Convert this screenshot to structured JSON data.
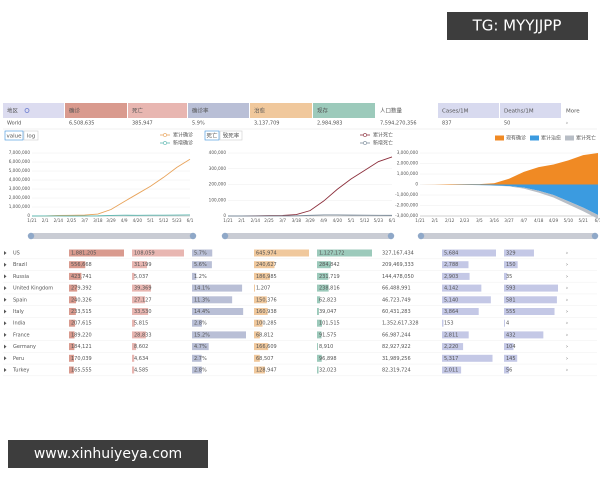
{
  "watermarks": {
    "top": "TG: MYYJJPP",
    "bottom": "www.xinhuiyeya.com"
  },
  "header": {
    "cells": [
      "地区",
      "确诊",
      "死亡",
      "确诊率",
      "治愈",
      "现存",
      "人口数量",
      "Cases/1M",
      "Deaths/1M",
      "More"
    ]
  },
  "world": [
    "World",
    "6,508,635",
    "385,947",
    "5.9%",
    "3,137,709",
    "2,984,983",
    "7,594,270,356",
    "837",
    "50",
    "›"
  ],
  "toolbar": {
    "scale": [
      "value",
      "log"
    ],
    "mode": [
      "死亡",
      "致死率"
    ]
  },
  "charts": [
    {
      "type": "line",
      "legend": "top-right",
      "x": [
        "1/21",
        "2/1",
        "2/14",
        "2/25",
        "3/7",
        "3/18",
        "3/29",
        "4/9",
        "4/20",
        "5/1",
        "5/12",
        "5/23",
        "6/1"
      ],
      "ylim": [
        0,
        7000000
      ],
      "yticks": [
        0,
        {
          "value": 1000000,
          "label": "1,000,000"
        },
        {
          "value": 2000000,
          "label": "2,000,000"
        },
        {
          "value": 3000000,
          "label": "3,000,000"
        },
        {
          "value": 4000000,
          "label": "4,000,000"
        },
        {
          "value": 5000000,
          "label": "5,000,000"
        },
        {
          "value": 6000000,
          "label": "6,000,000"
        },
        {
          "value": 7000000,
          "label": "7,000,000"
        }
      ],
      "series": [
        {
          "name": "累计确诊",
          "color": "#e8a35a",
          "values": [
            0,
            12000,
            60000,
            80000,
            105000,
            215000,
            720000,
            1600000,
            2450000,
            3300000,
            4300000,
            5400000,
            6300000
          ]
        },
        {
          "name": "新增确诊",
          "color": "#5bb7b0",
          "values": [
            0,
            2000,
            4000,
            1000,
            3500,
            15000,
            60000,
            85000,
            80000,
            85000,
            90000,
            100000,
            120000
          ]
        }
      ]
    },
    {
      "type": "line",
      "legend": "top-right",
      "x": [
        "1/21",
        "2/1",
        "2/14",
        "2/25",
        "3/7",
        "3/18",
        "3/29",
        "4/9",
        "4/20",
        "5/1",
        "5/12",
        "5/23",
        "6/1"
      ],
      "ylim": [
        0,
        400000
      ],
      "yticks": [
        0,
        {
          "value": 100000,
          "label": "100,000"
        },
        {
          "value": 200000,
          "label": "200,000"
        },
        {
          "value": 300000,
          "label": "300,000"
        },
        {
          "value": 400000,
          "label": "400,000"
        }
      ],
      "series": [
        {
          "name": "累计死亡",
          "color": "#8c2f3c",
          "values": [
            0,
            250,
            1300,
            2700,
            3500,
            9000,
            34000,
            95000,
            170000,
            235000,
            290000,
            345000,
            375000
          ]
        },
        {
          "name": "新增死亡",
          "color": "#7a8a99",
          "values": [
            0,
            10,
            100,
            150,
            100,
            1500,
            4000,
            6500,
            7000,
            5500,
            5000,
            4500,
            4000
          ]
        }
      ]
    },
    {
      "type": "area",
      "stacked": true,
      "legend": "top-right",
      "x": [
        "1/21",
        "2/1",
        "2/12",
        "2/23",
        "3/5",
        "3/16",
        "3/27",
        "4/7",
        "4/18",
        "4/29",
        "5/10",
        "5/21",
        "6/1"
      ],
      "ylim": [
        -3000000,
        3000000
      ],
      "yticks": [
        {
          "value": 3000000,
          "label": "3,000,000"
        },
        {
          "value": 2000000,
          "label": "2,000,000"
        },
        {
          "value": 1000000,
          "label": "1,000,000"
        },
        0,
        {
          "value": -1000000,
          "label": "-1,000,000"
        },
        {
          "value": -2000000,
          "label": "-2,000,000"
        },
        {
          "value": -3000000,
          "label": "-3,000,000"
        }
      ],
      "series": [
        {
          "name": "现有确诊",
          "color": "#f08a24",
          "values": [
            0,
            10000,
            50000,
            40000,
            40000,
            120000,
            550000,
            1200000,
            1650000,
            1900000,
            2300000,
            2800000,
            3000000
          ]
        },
        {
          "name": "累计治愈",
          "color": "#3b9be0",
          "values": [
            0,
            0,
            -2000,
            -30000,
            -60000,
            -95000,
            -150000,
            -300000,
            -600000,
            -1000000,
            -1600000,
            -2200000,
            -2900000
          ]
        },
        {
          "name": "累计死亡",
          "color": "#b8bec6",
          "values": [
            0,
            -250,
            -1300,
            -2700,
            -3500,
            -9000,
            -34000,
            -95000,
            -170000,
            -235000,
            -290000,
            -345000,
            -375000
          ]
        }
      ]
    }
  ],
  "rows": [
    [
      "US",
      "1,881,205",
      "108,059",
      "5.7%",
      "645,974",
      "1,127,172",
      "327,167,434",
      "5,684",
      "329"
    ],
    [
      "Brazil",
      "556,668",
      "31,199",
      "5.6%",
      "240,627",
      "284,842",
      "209,469,333",
      "2,788",
      "150"
    ],
    [
      "Russia",
      "423,741",
      "5,037",
      "1.2%",
      "186,985",
      "231,719",
      "144,478,050",
      "2,903",
      "35"
    ],
    [
      "United Kingdom",
      "279,392",
      "39,369",
      "14.1%",
      "1,207",
      "238,816",
      "66,488,991",
      "4,142",
      "593"
    ],
    [
      "Spain",
      "240,326",
      "27,127",
      "11.3%",
      "150,376",
      "62,823",
      "46,723,749",
      "5,140",
      "581"
    ],
    [
      "Italy",
      "233,515",
      "33,530",
      "14.4%",
      "160,938",
      "39,047",
      "60,431,283",
      "3,864",
      "555"
    ],
    [
      "India",
      "207,615",
      "5,815",
      "2.8%",
      "100,285",
      "101,515",
      "1,352,617,328",
      "153",
      "4"
    ],
    [
      "France",
      "189,220",
      "28,833",
      "15.2%",
      "68,812",
      "91,575",
      "66,987,244",
      "2,811",
      "432"
    ],
    [
      "Germany",
      "184,121",
      "8,602",
      "4.7%",
      "166,609",
      "8,910",
      "82,927,922",
      "2,220",
      "104"
    ],
    [
      "Peru",
      "170,039",
      "4,634",
      "2.7%",
      "68,507",
      "96,898",
      "31,989,256",
      "5,317",
      "145"
    ],
    [
      "Turkey",
      "165,555",
      "4,585",
      "2.8%",
      "128,947",
      "32,023",
      "82,319,724",
      "2,011",
      "56"
    ]
  ]
}
